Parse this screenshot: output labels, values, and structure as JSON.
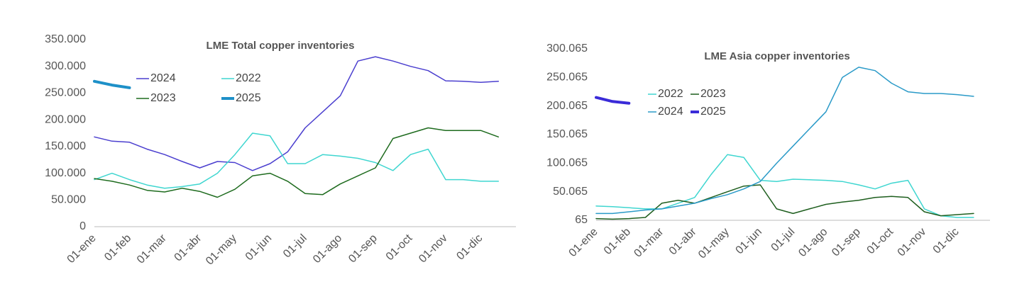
{
  "chart_data": [
    {
      "type": "line",
      "title": "LME Total copper inventories",
      "categories": [
        "01-ene",
        null,
        "01-feb",
        null,
        "01-mar",
        null,
        "01-abr",
        null,
        "01-may",
        null,
        "01-jun",
        null,
        "01-jul",
        null,
        "01-ago",
        null,
        "01-sep",
        null,
        "01-oct",
        null,
        "01-nov",
        null,
        "01-dic",
        null
      ],
      "ylim": [
        0,
        350000
      ],
      "yticks": [
        {
          "value": 0,
          "label": "0"
        },
        {
          "value": 50000,
          "label": "50.000"
        },
        {
          "value": 100000,
          "label": "100.000"
        },
        {
          "value": 150000,
          "label": "150.000"
        },
        {
          "value": 200000,
          "label": "200.000"
        },
        {
          "value": 250000,
          "label": "250.000"
        },
        {
          "value": 300000,
          "label": "300.000"
        },
        {
          "value": 350000,
          "label": "350.000"
        }
      ],
      "grid": false,
      "series": [
        {
          "name": "2024",
          "color": "#4b3fcf",
          "width": 1.5,
          "values": [
            168000,
            160000,
            158000,
            145000,
            135000,
            122000,
            110000,
            122000,
            120000,
            105000,
            118000,
            140000,
            185000,
            215000,
            245000,
            310000,
            318000,
            310000,
            300000,
            292000,
            273000,
            272000,
            270000,
            272000
          ]
        },
        {
          "name": "2022",
          "color": "#3fd6d0",
          "width": 1.5,
          "values": [
            88000,
            100000,
            88000,
            78000,
            72000,
            75000,
            80000,
            100000,
            135000,
            175000,
            170000,
            118000,
            118000,
            135000,
            132000,
            128000,
            120000,
            105000,
            135000,
            145000,
            88000,
            88000,
            85000,
            85000
          ]
        },
        {
          "name": "2023",
          "color": "#1e6b1e",
          "width": 1.5,
          "values": [
            90000,
            85000,
            78000,
            68000,
            65000,
            72000,
            66000,
            55000,
            70000,
            95000,
            100000,
            85000,
            62000,
            60000,
            80000,
            95000,
            110000,
            165000,
            175000,
            185000,
            180000,
            180000,
            180000,
            168000
          ]
        },
        {
          "name": "2025",
          "color": "#1e90c8",
          "width": 4,
          "values": [
            272000,
            265000,
            260000,
            null,
            null,
            null,
            null,
            null,
            null,
            null,
            null,
            null,
            null,
            null,
            null,
            null,
            null,
            null,
            null,
            null,
            null,
            null,
            null,
            null
          ]
        }
      ]
    },
    {
      "type": "line",
      "title": "LME Asia copper inventories",
      "categories": [
        "01-ene",
        null,
        "01-feb",
        null,
        "01-mar",
        null,
        "01-abr",
        null,
        "01-may",
        null,
        "01-jun",
        null,
        "01-jul",
        null,
        "01-ago",
        null,
        "01-sep",
        null,
        "01-oct",
        null,
        "01-nov",
        null,
        "01-dic",
        null
      ],
      "ylim": [
        65,
        300065
      ],
      "yticks": [
        65,
        {
          "value": 50065,
          "label": "50.065"
        },
        {
          "value": 100065,
          "label": "100.065"
        },
        {
          "value": 150065,
          "label": "150.065"
        },
        {
          "value": 200065,
          "label": "200.065"
        },
        {
          "value": 250065,
          "label": "250.065"
        },
        {
          "value": 300065,
          "label": "300.065"
        }
      ],
      "grid": false,
      "series": [
        {
          "name": "2022",
          "color": "#3fd6d0",
          "width": 1.5,
          "values": [
            25000,
            24000,
            22000,
            20000,
            20000,
            30000,
            40000,
            80000,
            115000,
            110000,
            70000,
            68000,
            72000,
            71000,
            70000,
            68000,
            62000,
            55000,
            65000,
            70000,
            20000,
            8000,
            5000,
            5000
          ]
        },
        {
          "name": "2023",
          "color": "#1e5e1e",
          "width": 1.5,
          "values": [
            3000,
            2000,
            3000,
            5000,
            30000,
            35000,
            30000,
            40000,
            50000,
            60000,
            62000,
            20000,
            12000,
            20000,
            28000,
            32000,
            35000,
            40000,
            42000,
            40000,
            15000,
            8000,
            10000,
            12000
          ]
        },
        {
          "name": "2024",
          "color": "#2a9ac8",
          "width": 1.5,
          "values": [
            12000,
            12000,
            15000,
            18000,
            20000,
            25000,
            30000,
            38000,
            45000,
            55000,
            68000,
            100000,
            130000,
            160000,
            190000,
            250000,
            268000,
            262000,
            240000,
            225000,
            222000,
            222000,
            220000,
            217000
          ]
        },
        {
          "name": "2025",
          "color": "#3a2bd8",
          "width": 4,
          "values": [
            215000,
            208000,
            205000,
            null,
            null,
            null,
            null,
            null,
            null,
            null,
            null,
            null,
            null,
            null,
            null,
            null,
            null,
            null,
            null,
            null,
            null,
            null,
            null,
            null
          ]
        }
      ]
    }
  ]
}
